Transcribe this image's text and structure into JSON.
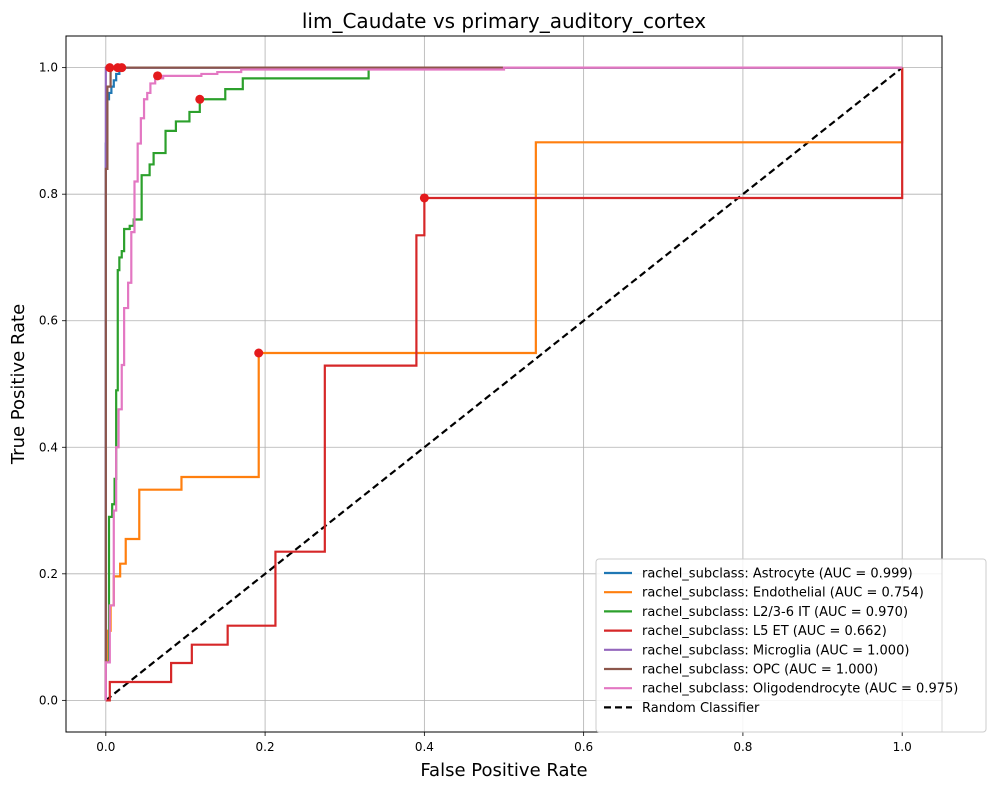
{
  "chart_data": {
    "type": "line",
    "title": "lim_Caudate vs primary_auditory_cortex",
    "xlabel": "False Positive Rate",
    "ylabel": "True Positive Rate",
    "xlim": [
      -0.05,
      1.05
    ],
    "ylim": [
      -0.05,
      1.05
    ],
    "xticks": [
      "0.0",
      "0.2",
      "0.4",
      "0.6",
      "0.8",
      "1.0"
    ],
    "yticks": [
      "0.0",
      "0.2",
      "0.4",
      "0.6",
      "0.8",
      "1.0"
    ],
    "grid": true,
    "legend_position": "lower-right",
    "series": [
      {
        "name": "rachel_subclass: Astrocyte (AUC = 0.999)",
        "color": "#1f77b4",
        "x": [
          0.0,
          0.0,
          0.002,
          0.002,
          0.004,
          0.004,
          0.007,
          0.007,
          0.01,
          0.01,
          0.013,
          0.013,
          0.017,
          0.017,
          1.0
        ],
        "y": [
          0.0,
          0.88,
          0.88,
          0.95,
          0.95,
          0.96,
          0.96,
          0.97,
          0.97,
          0.98,
          0.98,
          0.99,
          0.99,
          1.0,
          1.0
        ],
        "optimal": [
          0.015,
          1.0
        ]
      },
      {
        "name": "rachel_subclass: Endothelial (AUC = 0.754)",
        "color": "#ff7f0e",
        "x": [
          0.0,
          0.0,
          0.003,
          0.003,
          0.006,
          0.006,
          0.01,
          0.01,
          0.018,
          0.018,
          0.025,
          0.025,
          0.042,
          0.042,
          0.095,
          0.095,
          0.192,
          0.192,
          0.54,
          0.54,
          1.0,
          1.0
        ],
        "y": [
          0.0,
          0.06,
          0.06,
          0.11,
          0.11,
          0.15,
          0.15,
          0.196,
          0.196,
          0.216,
          0.216,
          0.255,
          0.255,
          0.333,
          0.333,
          0.353,
          0.353,
          0.549,
          0.549,
          0.882,
          0.882,
          1.0
        ],
        "optimal": [
          0.192,
          0.549
        ]
      },
      {
        "name": "rachel_subclass: L2/3-6 IT (AUC = 0.970)",
        "color": "#2ca02c",
        "x": [
          0.0,
          0.0,
          0.004,
          0.004,
          0.008,
          0.008,
          0.011,
          0.011,
          0.013,
          0.013,
          0.015,
          0.015,
          0.017,
          0.017,
          0.02,
          0.02,
          0.023,
          0.023,
          0.03,
          0.03,
          0.035,
          0.035,
          0.045,
          0.045,
          0.055,
          0.055,
          0.06,
          0.06,
          0.075,
          0.075,
          0.088,
          0.088,
          0.105,
          0.105,
          0.118,
          0.118,
          0.15,
          0.15,
          0.172,
          0.172,
          0.33,
          0.33,
          1.0
        ],
        "y": [
          0.0,
          0.06,
          0.06,
          0.29,
          0.29,
          0.31,
          0.31,
          0.35,
          0.35,
          0.49,
          0.49,
          0.68,
          0.68,
          0.7,
          0.7,
          0.71,
          0.71,
          0.745,
          0.745,
          0.75,
          0.75,
          0.76,
          0.76,
          0.83,
          0.83,
          0.847,
          0.847,
          0.865,
          0.865,
          0.9,
          0.9,
          0.915,
          0.915,
          0.93,
          0.93,
          0.95,
          0.95,
          0.966,
          0.966,
          0.983,
          0.983,
          1.0,
          1.0
        ],
        "optimal": [
          0.118,
          0.95
        ]
      },
      {
        "name": "rachel_subclass: L5 ET (AUC = 0.662)",
        "color": "#d62728",
        "x": [
          0.0,
          0.005,
          0.005,
          0.01,
          0.01,
          0.082,
          0.082,
          0.108,
          0.108,
          0.153,
          0.153,
          0.213,
          0.213,
          0.275,
          0.275,
          0.39,
          0.39,
          0.4,
          0.4,
          1.0,
          1.0
        ],
        "y": [
          0.0,
          0.0,
          0.029,
          0.029,
          0.029,
          0.029,
          0.059,
          0.059,
          0.088,
          0.088,
          0.118,
          0.118,
          0.235,
          0.235,
          0.529,
          0.529,
          0.735,
          0.735,
          0.794,
          0.794,
          1.0
        ],
        "optimal": [
          0.4,
          0.794
        ]
      },
      {
        "name": "rachel_subclass: Microglia (AUC = 1.000)",
        "color": "#9467bd",
        "x": [
          0.0,
          0.0,
          1.0
        ],
        "y": [
          0.0,
          1.0,
          1.0
        ],
        "optimal": [
          0.005,
          1.0
        ]
      },
      {
        "name": "rachel_subclass: OPC (AUC = 1.000)",
        "color": "#8c564b",
        "x": [
          0.0,
          0.0,
          0.002,
          0.002,
          0.006,
          0.006,
          0.5
        ],
        "y": [
          0.0,
          0.84,
          0.84,
          0.97,
          0.97,
          1.0,
          1.0
        ],
        "optimal": [
          0.02,
          1.0
        ]
      },
      {
        "name": "rachel_subclass: Oligodendrocyte (AUC = 0.975)",
        "color": "#e377c2",
        "x": [
          0.0,
          0.0,
          0.005,
          0.005,
          0.01,
          0.01,
          0.013,
          0.013,
          0.016,
          0.016,
          0.02,
          0.02,
          0.023,
          0.023,
          0.028,
          0.028,
          0.032,
          0.032,
          0.036,
          0.036,
          0.04,
          0.04,
          0.044,
          0.044,
          0.048,
          0.048,
          0.052,
          0.052,
          0.056,
          0.056,
          0.062,
          0.062,
          0.072,
          0.072,
          0.12,
          0.12,
          0.14,
          0.14,
          0.17,
          0.17,
          0.5,
          0.5,
          1.0
        ],
        "y": [
          0.0,
          0.06,
          0.06,
          0.15,
          0.15,
          0.3,
          0.3,
          0.4,
          0.4,
          0.46,
          0.46,
          0.53,
          0.53,
          0.62,
          0.62,
          0.66,
          0.66,
          0.74,
          0.74,
          0.82,
          0.82,
          0.88,
          0.88,
          0.92,
          0.92,
          0.95,
          0.95,
          0.96,
          0.96,
          0.975,
          0.975,
          0.983,
          0.983,
          0.987,
          0.987,
          0.99,
          0.99,
          0.993,
          0.993,
          0.997,
          0.997,
          1.0,
          1.0
        ],
        "optimal": [
          0.065,
          0.987
        ]
      },
      {
        "name": "Random Classifier",
        "color": "#000000",
        "dashed": true,
        "x": [
          0.0,
          1.0
        ],
        "y": [
          0.0,
          1.0
        ]
      }
    ]
  }
}
